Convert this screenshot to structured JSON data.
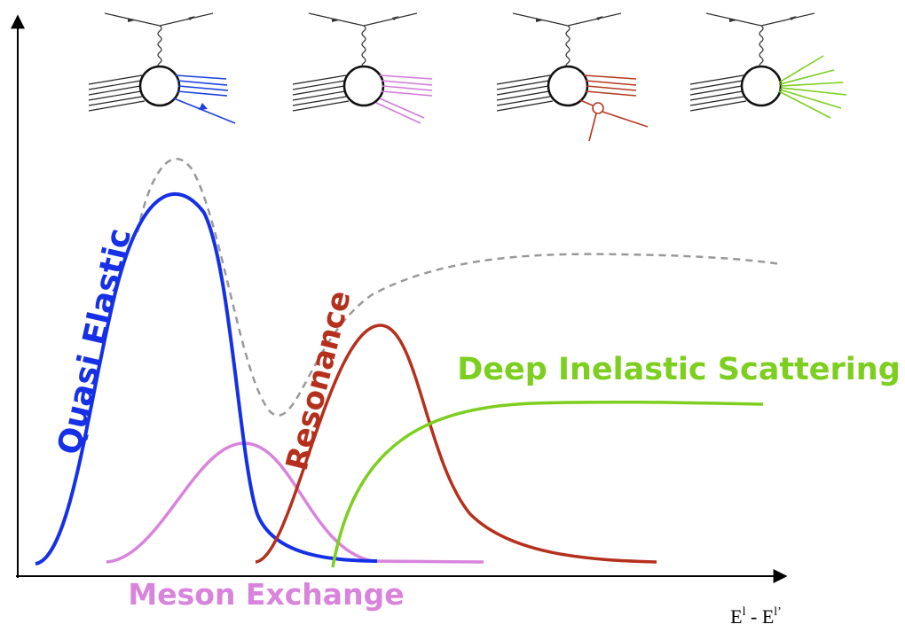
{
  "labels": {
    "quasi_elastic": "Quasi Elastic",
    "resonance": "Resonance",
    "deep_inelastic": "Deep Inelastic Scattering",
    "meson_exchange": "Meson Exchange"
  },
  "x_axis_label": {
    "parts": [
      "E",
      "l",
      " - E",
      "l’"
    ]
  }
}
